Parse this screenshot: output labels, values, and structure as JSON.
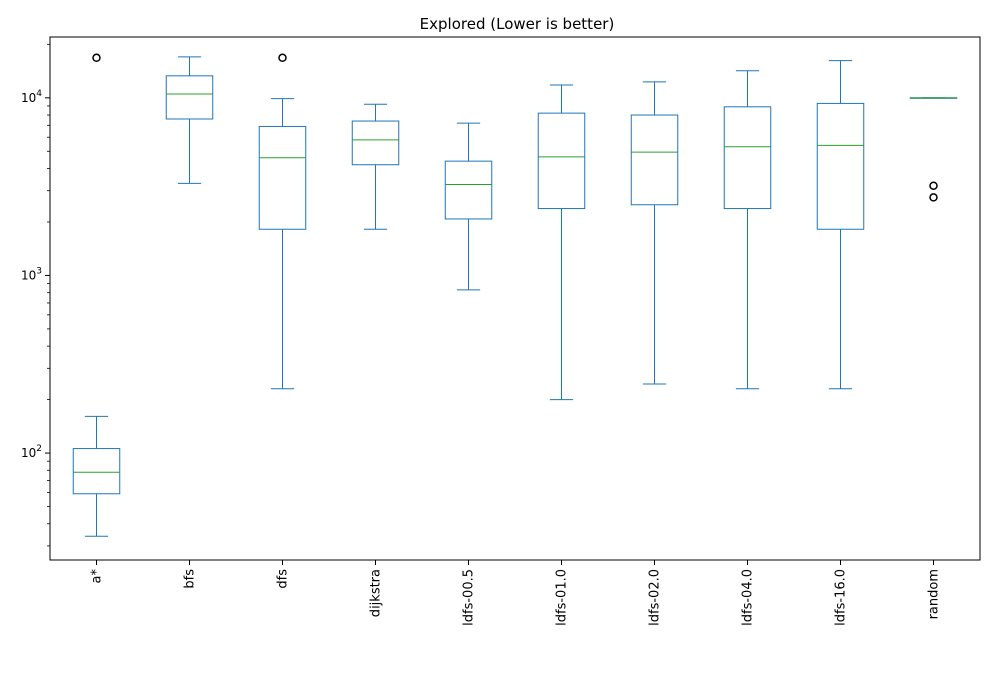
{
  "chart_data": {
    "type": "boxplot",
    "title": "Explored (Lower is better)",
    "xlabel": "",
    "ylabel": "",
    "yscale": "log",
    "ylim": [
      25,
      22000
    ],
    "yticks": [
      {
        "value": 100,
        "base": "10",
        "exp": "2"
      },
      {
        "value": 1000,
        "base": "10",
        "exp": "3"
      },
      {
        "value": 10000,
        "base": "10",
        "exp": "4"
      }
    ],
    "grid": false,
    "colors": {
      "box": "#1f77b4",
      "median": "#2ca02c",
      "flier": "#000000"
    },
    "categories": [
      "a*",
      "bfs",
      "dfs",
      "dijkstra",
      "ldfs-00.5",
      "ldfs-01.0",
      "ldfs-02.0",
      "ldfs-04.0",
      "ldfs-16.0",
      "random"
    ],
    "boxes": [
      {
        "label": "a*",
        "whislo": 34,
        "q1": 59,
        "med": 78,
        "q3": 106,
        "whishi": 161,
        "fliers": [
          16800
        ]
      },
      {
        "label": "bfs",
        "whislo": 3300,
        "q1": 7600,
        "med": 10500,
        "q3": 13300,
        "whishi": 17000,
        "fliers": []
      },
      {
        "label": "dfs",
        "whislo": 230,
        "q1": 1820,
        "med": 4600,
        "q3": 6900,
        "whishi": 9900,
        "fliers": [
          16800
        ]
      },
      {
        "label": "dijkstra",
        "whislo": 1820,
        "q1": 4200,
        "med": 5800,
        "q3": 7400,
        "whishi": 9200,
        "fliers": []
      },
      {
        "label": "ldfs-00.5",
        "whislo": 830,
        "q1": 2080,
        "med": 3250,
        "q3": 4400,
        "whishi": 7200,
        "fliers": []
      },
      {
        "label": "ldfs-01.0",
        "whislo": 200,
        "q1": 2380,
        "med": 4650,
        "q3": 8200,
        "whishi": 11800,
        "fliers": []
      },
      {
        "label": "ldfs-02.0",
        "whislo": 245,
        "q1": 2500,
        "med": 4950,
        "q3": 8000,
        "whishi": 12300,
        "fliers": []
      },
      {
        "label": "ldfs-04.0",
        "whislo": 230,
        "q1": 2380,
        "med": 5300,
        "q3": 8900,
        "whishi": 14200,
        "fliers": []
      },
      {
        "label": "ldfs-16.0",
        "whislo": 230,
        "q1": 1820,
        "med": 5400,
        "q3": 9300,
        "whishi": 16200,
        "fliers": []
      },
      {
        "label": "random",
        "whislo": 10000,
        "q1": 10000,
        "med": 10000,
        "q3": 10000,
        "whishi": 10000,
        "fliers": [
          3200,
          2750
        ]
      }
    ]
  }
}
